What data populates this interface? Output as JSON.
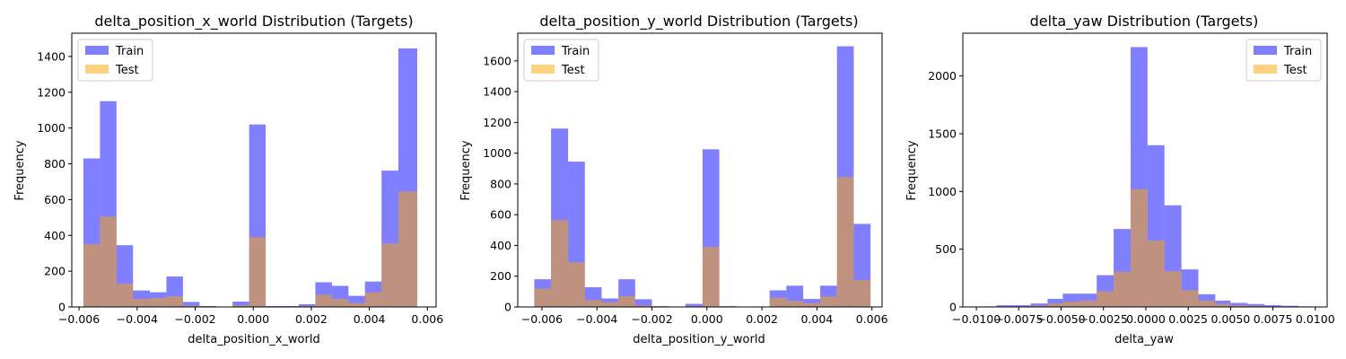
{
  "figure": {
    "background": "#ffffff"
  },
  "legend": {
    "train_label": "Train",
    "test_label": "Test"
  },
  "colors": {
    "train": "#0000ff",
    "test": "#ffa500",
    "train_alpha": 0.5,
    "test_alpha": 0.5
  },
  "chart_data": [
    {
      "type": "bar",
      "histogram": true,
      "title": "delta_position_x_world Distribution (Targets)",
      "xlabel": "delta_position_x_world",
      "ylabel": "Frequency",
      "xlim": [
        -0.00625,
        0.0063
      ],
      "ylim": [
        0,
        1530
      ],
      "xticks": [
        -0.006,
        -0.004,
        -0.002,
        0.0,
        0.002,
        0.004,
        0.006
      ],
      "xtick_labels": [
        "−0.006",
        "−0.004",
        "−0.002",
        "0.000",
        "0.002",
        "0.004",
        "0.006"
      ],
      "yticks": [
        0,
        200,
        400,
        600,
        800,
        1000,
        1200,
        1400
      ],
      "legend_position": "top-left",
      "grid": false,
      "series": [
        {
          "name": "Train",
          "bin_edges": [
            -0.00585,
            -0.00528,
            -0.00471,
            -0.00414,
            -0.00356,
            -0.00299,
            -0.00242,
            -0.00185,
            -0.00128,
            -0.00071,
            -0.00014,
            0.00043,
            0.001,
            0.00157,
            0.00214,
            0.00271,
            0.00328,
            0.00385,
            0.00442,
            0.005,
            0.00565
          ],
          "counts": [
            830,
            1150,
            345,
            92,
            82,
            170,
            28,
            5,
            0,
            30,
            1020,
            5,
            5,
            15,
            138,
            118,
            62,
            142,
            762,
            1445
          ]
        },
        {
          "name": "Test",
          "bin_edges": [
            -0.00585,
            -0.00528,
            -0.00471,
            -0.00414,
            -0.00356,
            -0.00299,
            -0.00242,
            -0.00185,
            -0.00128,
            -0.00071,
            -0.00014,
            0.00043,
            0.001,
            0.00157,
            0.00214,
            0.00271,
            0.00328,
            0.00385,
            0.00442,
            0.005,
            0.00565
          ],
          "counts": [
            350,
            505,
            130,
            45,
            50,
            60,
            8,
            2,
            0,
            10,
            390,
            2,
            2,
            5,
            68,
            45,
            22,
            82,
            355,
            645
          ]
        }
      ]
    },
    {
      "type": "bar",
      "histogram": true,
      "title": "delta_position_y_world Distribution (Targets)",
      "xlabel": "delta_position_y_world",
      "ylabel": "Frequency",
      "xlim": [
        -0.00688,
        0.00637
      ],
      "ylim": [
        0,
        1780
      ],
      "xticks": [
        -0.006,
        -0.004,
        -0.002,
        0.0,
        0.002,
        0.004,
        0.006
      ],
      "xtick_labels": [
        "−0.006",
        "−0.004",
        "−0.002",
        "0.000",
        "0.002",
        "0.004",
        "0.006"
      ],
      "yticks": [
        0,
        200,
        400,
        600,
        800,
        1000,
        1200,
        1400,
        1600
      ],
      "legend_position": "top-left",
      "grid": false,
      "series": [
        {
          "name": "Train",
          "bin_edges": [
            -0.00628,
            -0.00567,
            -0.00505,
            -0.00444,
            -0.00383,
            -0.00322,
            -0.00261,
            -0.002,
            -0.00139,
            -0.00078,
            -0.00016,
            0.00045,
            0.00106,
            0.00167,
            0.00228,
            0.00289,
            0.0035,
            0.00412,
            0.00473,
            0.00534,
            0.00595
          ],
          "counts": [
            180,
            1160,
            945,
            128,
            55,
            180,
            50,
            5,
            0,
            20,
            1025,
            5,
            3,
            3,
            108,
            138,
            52,
            138,
            1695,
            540
          ]
        },
        {
          "name": "Test",
          "bin_edges": [
            -0.00628,
            -0.00567,
            -0.00505,
            -0.00444,
            -0.00383,
            -0.00322,
            -0.00261,
            -0.002,
            -0.00139,
            -0.00078,
            -0.00016,
            0.00045,
            0.00106,
            0.00167,
            0.00228,
            0.00289,
            0.0035,
            0.00412,
            0.00473,
            0.00534,
            0.00595
          ],
          "counts": [
            120,
            565,
            290,
            45,
            30,
            70,
            10,
            2,
            0,
            5,
            390,
            2,
            2,
            2,
            60,
            40,
            25,
            68,
            845,
            175
          ]
        }
      ]
    },
    {
      "type": "bar",
      "histogram": true,
      "title": "delta_yaw Distribution (Targets)",
      "xlabel": "delta_yaw",
      "ylabel": "Frequency",
      "xlim": [
        -0.0108,
        0.0107
      ],
      "ylim": [
        0,
        2370
      ],
      "xticks": [
        -0.01,
        -0.0075,
        -0.005,
        -0.0025,
        0.0,
        0.0025,
        0.005,
        0.0075,
        0.01
      ],
      "xtick_labels": [
        "−0.0100",
        "−0.0075",
        "−0.0050",
        "−0.0025",
        "0.0000",
        "0.0025",
        "0.0050",
        "0.0075",
        "0.0100"
      ],
      "yticks": [
        0,
        500,
        1000,
        1500,
        2000
      ],
      "legend_position": "top-right",
      "grid": false,
      "series": [
        {
          "name": "Train",
          "bin_edges": [
            -0.0098,
            -0.0088,
            -0.0078,
            -0.0068,
            -0.0058,
            -0.0049,
            -0.0039,
            -0.0029,
            -0.0019,
            -0.0009,
            0.0001,
            0.0011,
            0.0021,
            0.0031,
            0.0041,
            0.005,
            0.006,
            0.007,
            0.008,
            0.009,
            0.0098
          ],
          "counts": [
            5,
            15,
            15,
            30,
            70,
            115,
            115,
            275,
            675,
            2250,
            1400,
            880,
            325,
            110,
            55,
            35,
            25,
            15,
            10,
            5
          ]
        },
        {
          "name": "Test",
          "bin_edges": [
            -0.0098,
            -0.0088,
            -0.0078,
            -0.0068,
            -0.0058,
            -0.0049,
            -0.0039,
            -0.0029,
            -0.0019,
            -0.0009,
            0.0001,
            0.0011,
            0.0021,
            0.0031,
            0.0041,
            0.005,
            0.006,
            0.007,
            0.008,
            0.009,
            0.0098
          ],
          "counts": [
            2,
            5,
            5,
            10,
            30,
            45,
            55,
            135,
            305,
            1020,
            575,
            310,
            145,
            55,
            25,
            15,
            10,
            5,
            3,
            2
          ]
        }
      ]
    }
  ]
}
